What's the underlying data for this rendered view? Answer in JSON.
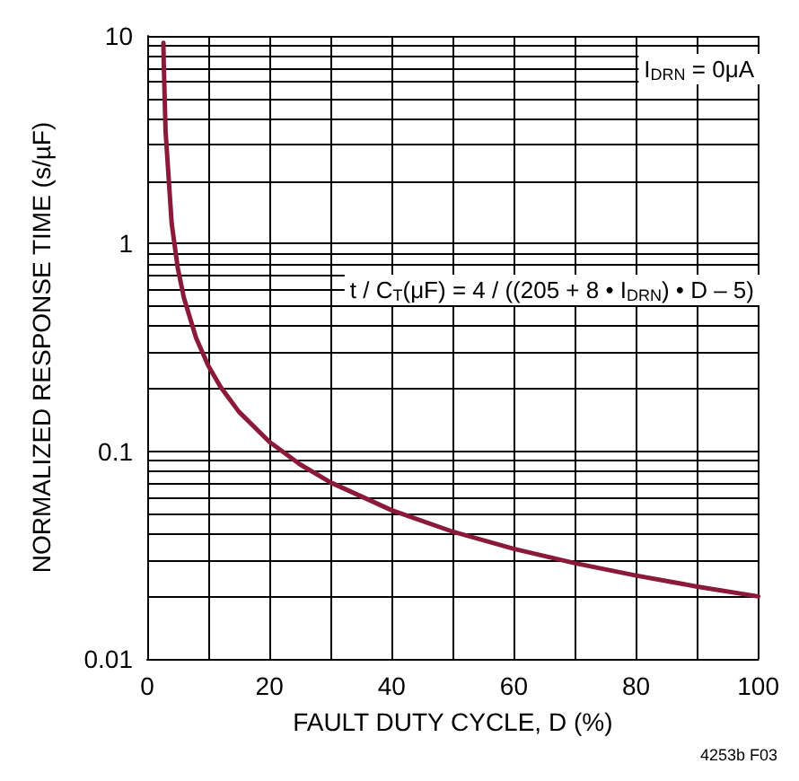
{
  "chart_data": {
    "type": "line",
    "xlabel": "FAULT DUTY CYCLE, D (%)",
    "ylabel": "NORMALIZED RESPONSE TIME (s/µF)",
    "x": [
      2.65,
      2.7,
      3,
      4,
      5,
      6,
      8,
      10,
      12,
      15,
      20,
      25,
      30,
      40,
      50,
      60,
      70,
      80,
      90,
      100
    ],
    "series": [
      {
        "color": "#8b1a3a",
        "values": [
          9.25,
          7.48,
          3.48,
          1.25,
          0.762,
          0.548,
          0.351,
          0.258,
          0.204,
          0.155,
          0.111,
          0.0865,
          0.0708,
          0.052,
          0.041,
          0.0339,
          0.0289,
          0.0252,
          0.0223,
          0.02
        ]
      }
    ],
    "xlim": [
      0,
      100
    ],
    "xticks": [
      0,
      20,
      40,
      60,
      80,
      100
    ],
    "ylim": [
      0.01,
      10
    ],
    "yticks": [
      0.01,
      0.1,
      1,
      10
    ],
    "log": "y",
    "grid": true,
    "marker": "none",
    "line_style": "solid",
    "annotations": [
      "I$_{DRN}$ = 0μA",
      "t / C$_{T}$(μF) = 4 / ((205 + 8 • I$_{DRN}$) • D – 5)",
      "4253b F03"
    ]
  }
}
